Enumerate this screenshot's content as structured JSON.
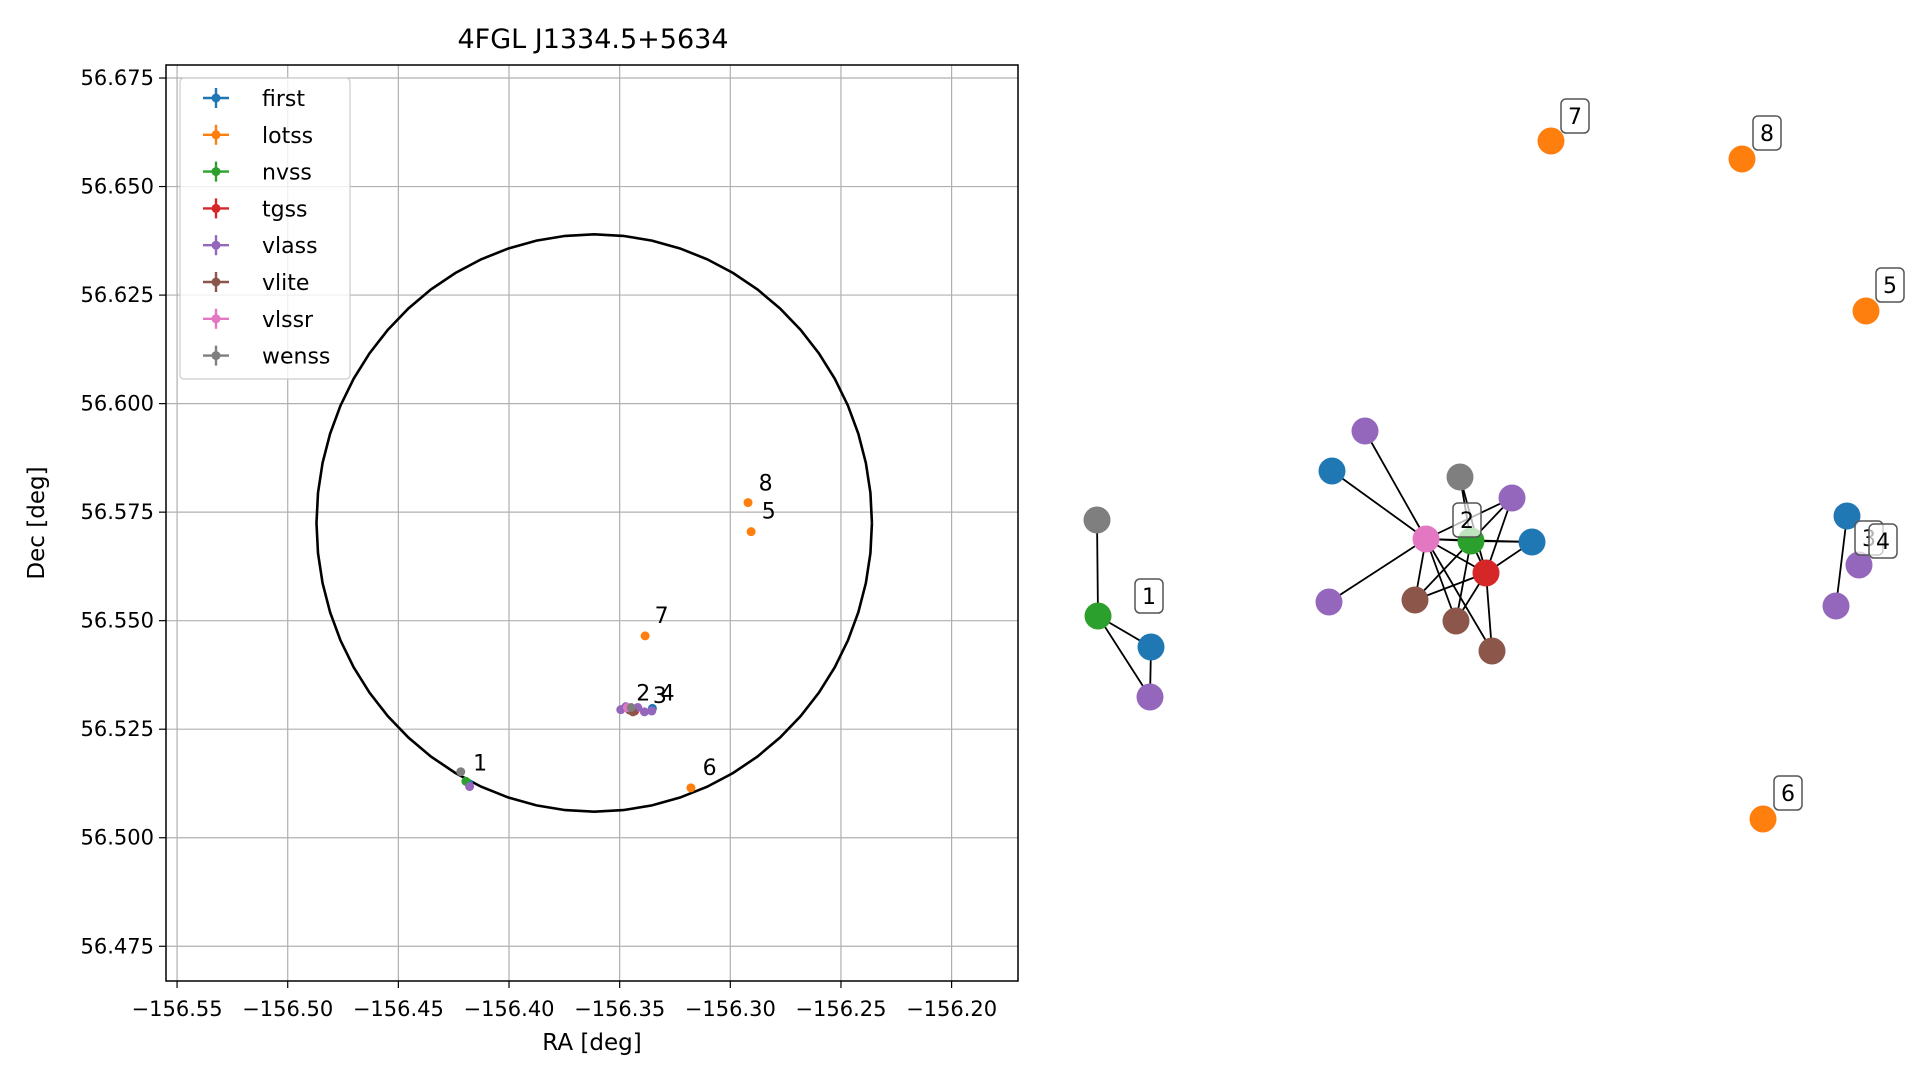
{
  "chart_data": [
    {
      "type": "scatter",
      "title": "4FGL J1334.5+5634",
      "xlabel": "RA [deg]",
      "ylabel": "Dec [deg]",
      "xlim": [
        -156.555,
        -156.17
      ],
      "ylim": [
        56.467,
        56.678
      ],
      "xticks": [
        -156.55,
        -156.5,
        -156.45,
        -156.4,
        -156.35,
        -156.3,
        -156.25,
        -156.2
      ],
      "xtick_labels": [
        "−156.55",
        "−156.50",
        "−156.45",
        "−156.40",
        "−156.35",
        "−156.30",
        "−156.25",
        "−156.20"
      ],
      "yticks": [
        56.475,
        56.5,
        56.525,
        56.55,
        56.575,
        56.6,
        56.625,
        56.65,
        56.675
      ],
      "ytick_labels": [
        "56.475",
        "56.500",
        "56.525",
        "56.550",
        "56.575",
        "56.600",
        "56.625",
        "56.650",
        "56.675"
      ],
      "grid": true,
      "legend_position": "top-left",
      "circle": {
        "center": [
          -156.3615,
          56.5725
        ],
        "radius_ra": 0.1255,
        "radius_dec": 0.0665
      },
      "series": [
        {
          "name": "first",
          "color": "#1f77b4",
          "points": [
            [
              -156.4182,
              56.5125
            ],
            [
              -156.3352,
              56.5298
            ]
          ]
        },
        {
          "name": "lotss",
          "color": "#ff7f0e",
          "points": [
            [
              -156.3385,
              56.5465
            ],
            [
              -156.292,
              56.5772
            ],
            [
              -156.2906,
              56.5705
            ],
            [
              -156.3178,
              56.5115
            ]
          ]
        },
        {
          "name": "nvss",
          "color": "#2ca02c",
          "points": [
            [
              -156.4195,
              56.513
            ],
            [
              -156.3445,
              56.5298
            ]
          ]
        },
        {
          "name": "tgss",
          "color": "#d62728",
          "points": [
            [
              -156.3432,
              56.5292
            ]
          ]
        },
        {
          "name": "vlass",
          "color": "#9467bd",
          "points": [
            [
              -156.4178,
              56.5118
            ],
            [
              -156.3495,
              56.5295
            ],
            [
              -156.3472,
              56.5302
            ],
            [
              -156.3418,
              56.53
            ],
            [
              -156.3388,
              56.529
            ],
            [
              -156.3355,
              56.5292
            ]
          ]
        },
        {
          "name": "vlite",
          "color": "#8c564b",
          "points": [
            [
              -156.3455,
              56.5294
            ],
            [
              -156.344,
              56.529
            ]
          ]
        },
        {
          "name": "vlssr",
          "color": "#e377c2",
          "points": [
            [
              -156.3465,
              56.53
            ]
          ]
        },
        {
          "name": "wenss",
          "color": "#7f7f7f",
          "points": [
            [
              -156.4218,
              56.5152
            ],
            [
              -156.3448,
              56.53
            ]
          ]
        }
      ],
      "annotations": [
        {
          "text": "1",
          "x": -156.4162,
          "y": 56.5155
        },
        {
          "text": "2",
          "x": -156.3425,
          "y": 56.5316
        },
        {
          "text": "3",
          "x": -156.335,
          "y": 56.531
        },
        {
          "text": "4",
          "x": -156.3315,
          "y": 56.5316
        },
        {
          "text": "5",
          "x": -156.2858,
          "y": 56.5735
        },
        {
          "text": "6",
          "x": -156.3125,
          "y": 56.5145
        },
        {
          "text": "7",
          "x": -156.3342,
          "y": 56.5495
        },
        {
          "text": "8",
          "x": -156.2872,
          "y": 56.58
        }
      ]
    },
    {
      "type": "network-graph",
      "nodes": [
        {
          "id": "g1",
          "series": "wenss",
          "color": "#7f7f7f"
        },
        {
          "id": "n1",
          "series": "nvss",
          "color": "#2ca02c"
        },
        {
          "id": "f1",
          "series": "first",
          "color": "#1f77b4"
        },
        {
          "id": "v1",
          "series": "vlass",
          "color": "#9467bd"
        },
        {
          "id": "f2a",
          "series": "first",
          "color": "#1f77b4"
        },
        {
          "id": "v2a",
          "series": "vlass",
          "color": "#9467bd"
        },
        {
          "id": "g2",
          "series": "wenss",
          "color": "#7f7f7f"
        },
        {
          "id": "v2b",
          "series": "vlass",
          "color": "#9467bd"
        },
        {
          "id": "p2",
          "series": "vlssr",
          "color": "#e377c2"
        },
        {
          "id": "n2",
          "series": "nvss",
          "color": "#2ca02c"
        },
        {
          "id": "f2b",
          "series": "first",
          "color": "#1f77b4"
        },
        {
          "id": "t2",
          "series": "tgss",
          "color": "#d62728"
        },
        {
          "id": "v2c",
          "series": "vlass",
          "color": "#9467bd"
        },
        {
          "id": "b2a",
          "series": "vlite",
          "color": "#8c564b"
        },
        {
          "id": "b2b",
          "series": "vlite",
          "color": "#8c564b"
        },
        {
          "id": "b2c",
          "series": "vlite",
          "color": "#8c564b"
        },
        {
          "id": "f3",
          "series": "first",
          "color": "#1f77b4"
        },
        {
          "id": "v3",
          "series": "vlass",
          "color": "#9467bd"
        },
        {
          "id": "v4",
          "series": "vlass",
          "color": "#9467bd"
        },
        {
          "id": "l7",
          "series": "lotss",
          "color": "#ff7f0e"
        },
        {
          "id": "l8",
          "series": "lotss",
          "color": "#ff7f0e"
        },
        {
          "id": "l5",
          "series": "lotss",
          "color": "#ff7f0e"
        },
        {
          "id": "l6",
          "series": "lotss",
          "color": "#ff7f0e"
        }
      ],
      "edges": [
        [
          "g1",
          "n1"
        ],
        [
          "n1",
          "f1"
        ],
        [
          "n1",
          "v1"
        ],
        [
          "f1",
          "v1"
        ],
        [
          "f2a",
          "p2"
        ],
        [
          "v2a",
          "p2"
        ],
        [
          "g2",
          "n2"
        ],
        [
          "g2",
          "t2"
        ],
        [
          "p2",
          "n2"
        ],
        [
          "p2",
          "t2"
        ],
        [
          "p2",
          "v2b"
        ],
        [
          "p2",
          "f2b"
        ],
        [
          "p2",
          "v2c"
        ],
        [
          "p2",
          "b2a"
        ],
        [
          "p2",
          "b2b"
        ],
        [
          "p2",
          "b2c"
        ],
        [
          "n2",
          "t2"
        ],
        [
          "n2",
          "f2b"
        ],
        [
          "n2",
          "v2b"
        ],
        [
          "n2",
          "b2a"
        ],
        [
          "n2",
          "b2b"
        ],
        [
          "t2",
          "f2b"
        ],
        [
          "t2",
          "v2b"
        ],
        [
          "t2",
          "b2a"
        ],
        [
          "t2",
          "b2b"
        ],
        [
          "t2",
          "b2c"
        ],
        [
          "f3",
          "v3"
        ]
      ],
      "labels": [
        {
          "text": "1"
        },
        {
          "text": "2"
        },
        {
          "text": "3"
        },
        {
          "text": "4"
        },
        {
          "text": "5"
        },
        {
          "text": "6"
        },
        {
          "text": "7"
        },
        {
          "text": "8"
        }
      ]
    }
  ]
}
